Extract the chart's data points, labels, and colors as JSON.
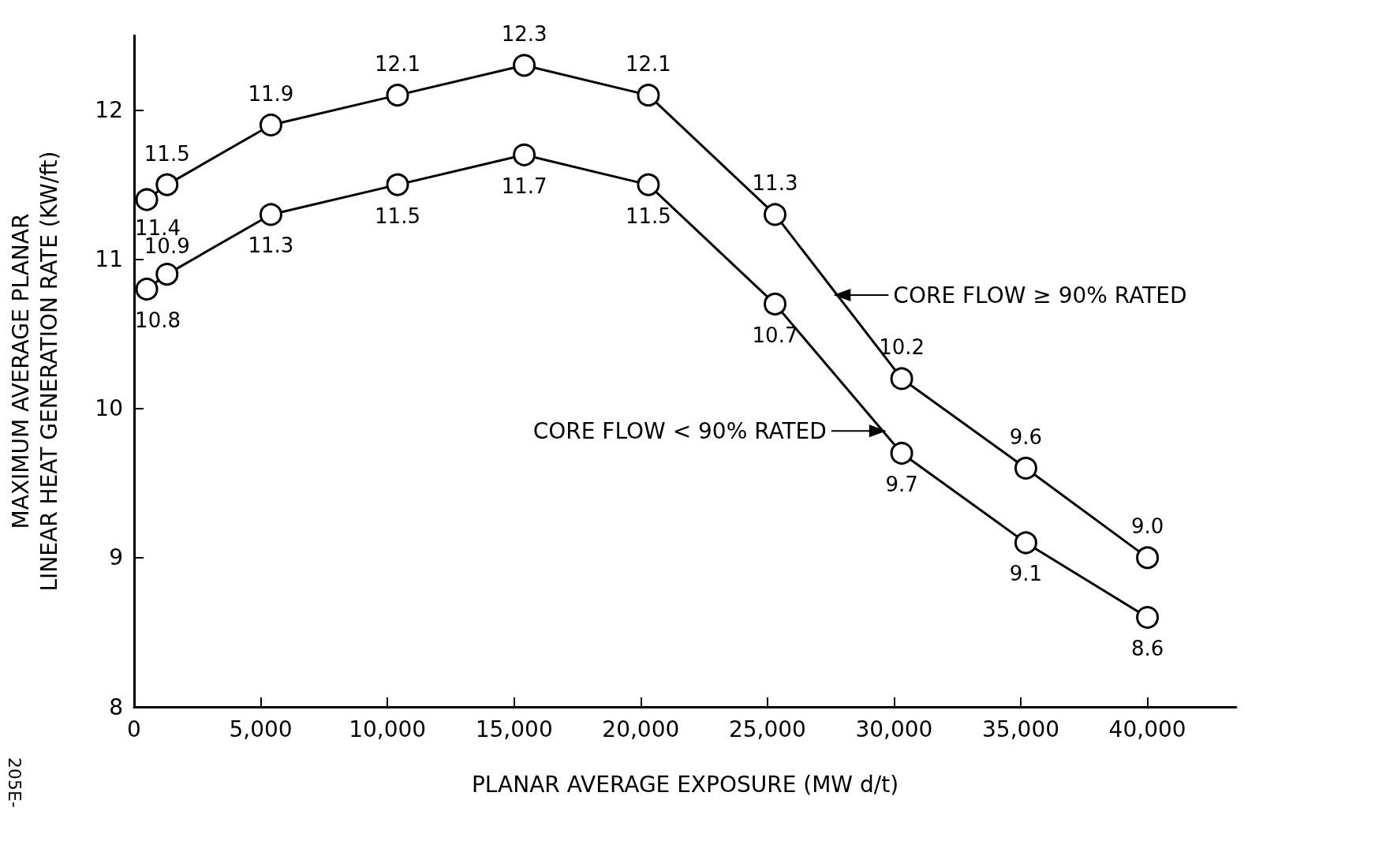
{
  "chart_data": {
    "type": "line",
    "xlabel": "PLANAR AVERAGE EXPOSURE (MW d/t)",
    "ylabel": "MAXIMUM AVERAGE PLANAR\nLINEAR HEAT GENERATION RATE (KW/ft)",
    "x": [
      500,
      1300,
      5400,
      10400,
      15400,
      20300,
      25300,
      30300,
      35200,
      40000
    ],
    "series": [
      {
        "color": "#000000",
        "values": [
          11.4,
          11.5,
          11.9,
          12.1,
          12.3,
          12.1,
          11.3,
          10.2,
          9.6,
          9.0
        ],
        "value_labels": [
          "11.4",
          "11.5",
          "11.9",
          "12.1",
          "12.3",
          "12.1",
          "11.3",
          "10.2",
          "9.6",
          "9.0"
        ]
      },
      {
        "color": "#000000",
        "values": [
          10.8,
          10.9,
          11.3,
          11.5,
          11.7,
          11.5,
          10.7,
          9.7,
          9.1,
          8.6
        ],
        "value_labels": [
          "10.8",
          "10.9",
          "11.3",
          "11.5",
          "11.7",
          "11.5",
          "10.7",
          "9.7",
          "9.1",
          "8.6"
        ]
      }
    ],
    "xlim": [
      0,
      43500
    ],
    "xticks": [
      0,
      {
        "value": 5000,
        "label": "5,000"
      },
      {
        "value": 10000,
        "label": "10,000"
      },
      {
        "value": 15000,
        "label": "15,000"
      },
      {
        "value": 20000,
        "label": "20,000"
      },
      {
        "value": 25000,
        "label": "25,000"
      },
      {
        "value": 30000,
        "label": "30,000"
      },
      {
        "value": 35000,
        "label": "35,000"
      },
      {
        "value": 40000,
        "label": "40,000"
      }
    ],
    "ylim": [
      8,
      12.5
    ],
    "yticks": [
      8,
      9,
      10,
      11,
      12
    ],
    "grid": false,
    "marker": "circle",
    "line_style": "solid",
    "annotations": [
      {
        "text": "CORE FLOW ≥ 90% RATED",
        "x": 27600,
        "y": 10.76
      },
      {
        "text": "CORE FLOW < 90% RATED",
        "x": 29700,
        "y": 9.85
      },
      "205E-"
    ]
  }
}
